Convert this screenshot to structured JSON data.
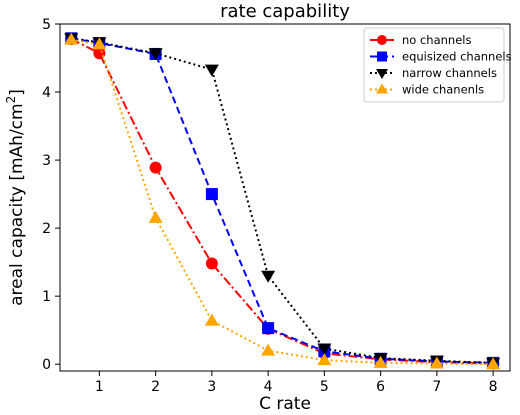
{
  "chart_data": {
    "type": "line",
    "title": "rate capability",
    "xlabel": "C rate",
    "ylabel": "areal capacity [mAh/cm²]",
    "xlim": [
      0.3,
      8.3
    ],
    "ylim": [
      -0.1,
      5.0
    ],
    "xticks": [
      1,
      2,
      3,
      4,
      5,
      6,
      7,
      8
    ],
    "yticks": [
      0,
      1,
      2,
      3,
      4,
      5
    ],
    "grid": false,
    "legend_position": "top-right",
    "series": [
      {
        "name": "no channels",
        "color": "#ff0000",
        "line_style": "dashdot",
        "marker": "circle",
        "x": [
          0.5,
          1,
          2,
          3,
          4,
          5,
          6,
          7,
          8
        ],
        "y": [
          4.78,
          4.57,
          2.89,
          1.48,
          0.52,
          0.16,
          0.07,
          0.03,
          0.01
        ]
      },
      {
        "name": "equisized channels",
        "color": "#0000ff",
        "line_style": "dashed",
        "marker": "square",
        "x": [
          0.5,
          1,
          2,
          3,
          4,
          5,
          6,
          7,
          8
        ],
        "y": [
          4.79,
          4.72,
          4.56,
          2.5,
          0.53,
          0.19,
          0.08,
          0.04,
          0.02
        ]
      },
      {
        "name": "narrow channels",
        "color": "#000000",
        "line_style": "dotted",
        "marker": "triangle-down",
        "x": [
          0.5,
          1,
          2,
          3,
          4,
          5,
          6,
          7,
          8
        ],
        "y": [
          4.79,
          4.73,
          4.57,
          4.33,
          1.3,
          0.23,
          0.09,
          0.05,
          0.02
        ]
      },
      {
        "name": "wide chanenls",
        "color": "#ffa500",
        "line_style": "dotted",
        "marker": "triangle-up",
        "x": [
          0.5,
          1,
          2,
          3,
          4,
          5,
          6,
          7,
          8
        ],
        "y": [
          4.77,
          4.7,
          2.15,
          0.64,
          0.2,
          0.06,
          0.02,
          0.01,
          0.0
        ]
      }
    ]
  }
}
